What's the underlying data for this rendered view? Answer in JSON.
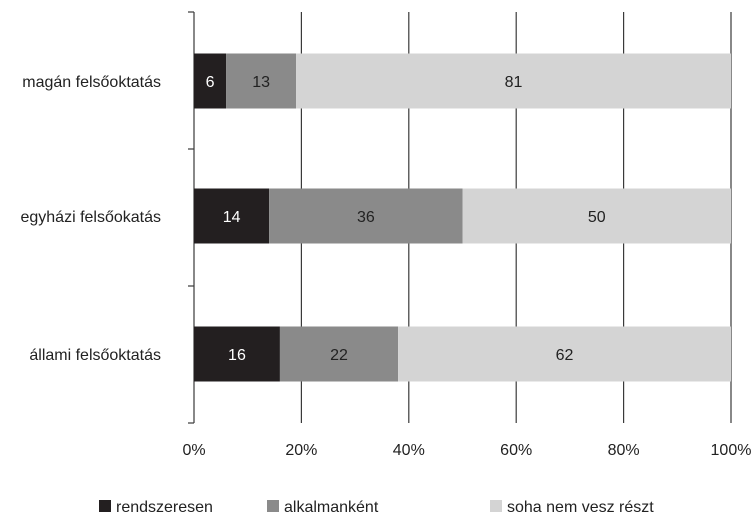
{
  "chart_data": {
    "type": "bar",
    "orientation": "horizontal",
    "stacked": true,
    "categories": [
      "magán felsőoktatás",
      "egyházi felsőokatás",
      "állami felsőoktatás"
    ],
    "series": [
      {
        "name": "rendszeresen",
        "values": [
          6,
          14,
          16
        ],
        "color": "#231f20",
        "label_color": "#ffffff"
      },
      {
        "name": "alkalmanként",
        "values": [
          13,
          36,
          22
        ],
        "color": "#8a8a8a",
        "label_color": "#222222"
      },
      {
        "name": "soha nem vesz részt",
        "values": [
          81,
          50,
          62
        ],
        "color": "#d4d4d4",
        "label_color": "#222222"
      }
    ],
    "x_ticks": [
      0,
      20,
      40,
      60,
      80,
      100
    ],
    "x_tick_labels": [
      "0%",
      "20%",
      "40%",
      "60%",
      "80%",
      "100%"
    ],
    "xlim": [
      0,
      100
    ],
    "grid": true,
    "legend_position": "bottom"
  }
}
